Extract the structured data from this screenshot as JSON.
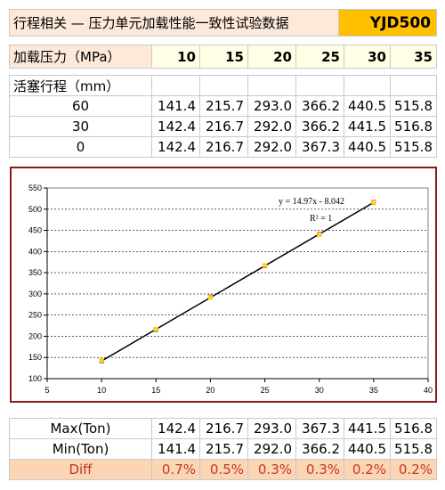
{
  "header": {
    "title": "行程相关 — 压力单元加载性能一致性试验数据",
    "model": "YJD500"
  },
  "pressure": {
    "label": "加载压力（MPa）",
    "values": [
      "10",
      "15",
      "20",
      "25",
      "30",
      "35"
    ]
  },
  "stroke": {
    "label": "活塞行程（mm）",
    "rows": [
      {
        "stroke": "60",
        "values": [
          "141.4",
          "215.7",
          "293.0",
          "366.2",
          "440.5",
          "515.8"
        ]
      },
      {
        "stroke": "30",
        "values": [
          "142.4",
          "216.7",
          "292.0",
          "366.2",
          "441.5",
          "516.8"
        ]
      },
      {
        "stroke": "0",
        "values": [
          "142.4",
          "216.7",
          "292.0",
          "367.3",
          "440.5",
          "515.8"
        ]
      }
    ]
  },
  "summary": {
    "rows": [
      {
        "label": "Max(Ton)",
        "values": [
          "142.4",
          "216.7",
          "293.0",
          "367.3",
          "441.5",
          "516.8"
        ]
      },
      {
        "label": "Min(Ton)",
        "values": [
          "141.4",
          "215.7",
          "292.0",
          "366.2",
          "440.5",
          "515.8"
        ]
      },
      {
        "label": "Diff",
        "values": [
          "0.7%",
          "0.5%",
          "0.3%",
          "0.3%",
          "0.2%",
          "0.2%"
        ]
      }
    ]
  },
  "chart_data": {
    "type": "scatter",
    "title": "",
    "xlabel": "",
    "ylabel": "",
    "xlim": [
      5,
      40
    ],
    "ylim": [
      100,
      550
    ],
    "xticks": [
      5,
      10,
      15,
      20,
      25,
      30,
      35,
      40
    ],
    "yticks": [
      100,
      150,
      200,
      250,
      300,
      350,
      400,
      450,
      500,
      550
    ],
    "grid": true,
    "series": [
      {
        "x": [
          10,
          15,
          20,
          25,
          30,
          35
        ],
        "y": [
          141.4,
          215.7,
          293.0,
          366.2,
          440.5,
          515.8
        ],
        "color": "#0000cc"
      },
      {
        "x": [
          10,
          15,
          20,
          25,
          30,
          35
        ],
        "y": [
          142.4,
          216.7,
          292.0,
          366.2,
          441.5,
          516.8
        ],
        "color": "#ff00ff"
      },
      {
        "x": [
          10,
          15,
          20,
          25,
          30,
          35
        ],
        "y": [
          142.4,
          216.7,
          292.0,
          367.3,
          440.5,
          515.8
        ],
        "color": "#ffd700"
      }
    ],
    "trendline": {
      "slope": 14.97,
      "intercept": -8.042,
      "color": "#000000"
    },
    "annotations": {
      "equation": "y = 14.97x - 8.042",
      "r2": "R² = 1"
    }
  }
}
